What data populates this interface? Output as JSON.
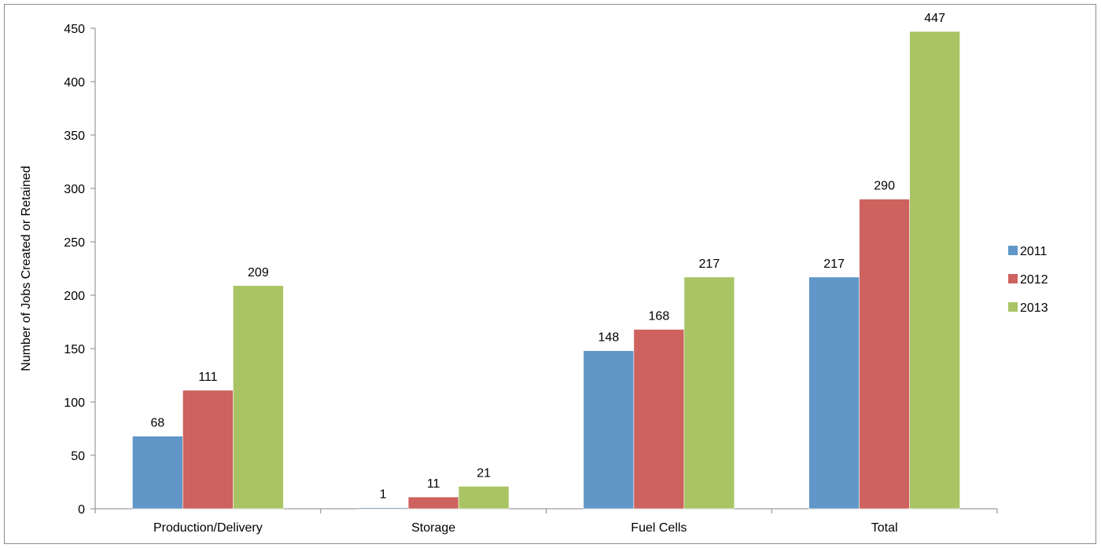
{
  "chart_data": {
    "type": "bar",
    "categories": [
      "Production/Delivery",
      "Storage",
      "Fuel Cells",
      "Total"
    ],
    "series": [
      {
        "name": "2011",
        "color": "#6097c8",
        "values": [
          68,
          1,
          148,
          217
        ]
      },
      {
        "name": "2012",
        "color": "#cd625e",
        "values": [
          111,
          11,
          168,
          290
        ]
      },
      {
        "name": "2013",
        "color": "#a8c464",
        "values": [
          209,
          21,
          217,
          447
        ]
      }
    ],
    "title": "",
    "xlabel": "",
    "ylabel": "Number of Jobs Created or Retained",
    "ylim": [
      0,
      450
    ],
    "yticks": [
      0,
      50,
      100,
      150,
      200,
      250,
      300,
      350,
      400,
      450
    ],
    "grid": false,
    "legend_position": "right",
    "data_labels": true
  }
}
